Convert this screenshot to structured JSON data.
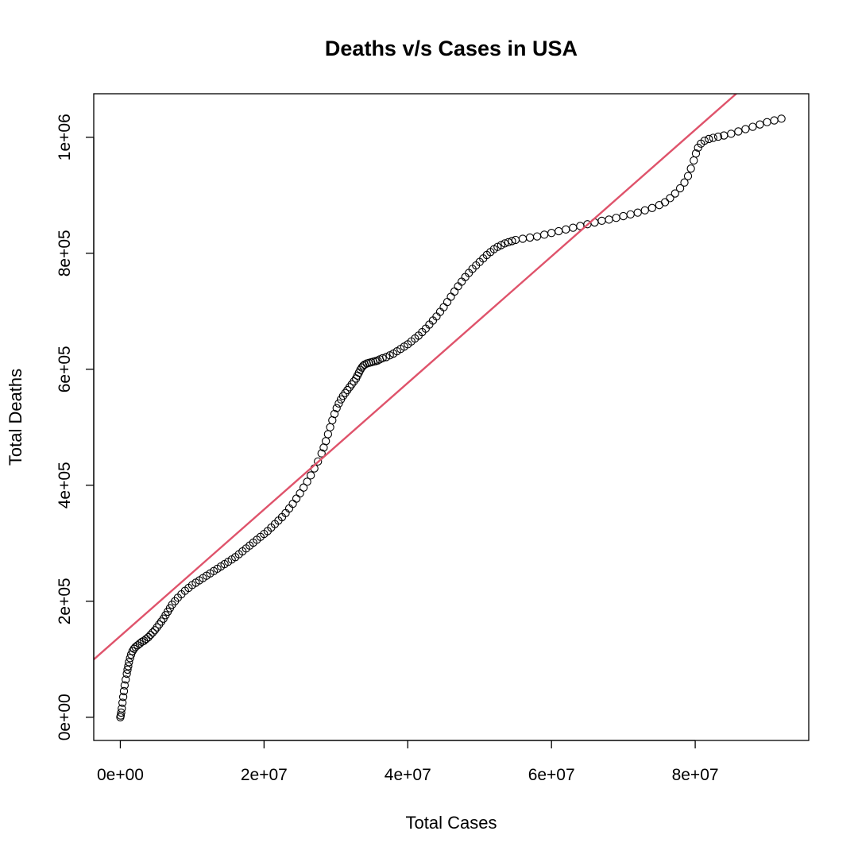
{
  "chart_data": {
    "type": "scatter",
    "title": "Deaths v/s Cases in USA",
    "xlabel": "Total Cases",
    "ylabel": "Total Deaths",
    "xlim": [
      -3700000,
      95800000
    ],
    "ylim": [
      -40000,
      1075000
    ],
    "x_ticks": [
      {
        "value": 0,
        "label": "0e+00"
      },
      {
        "value": 20000000,
        "label": "2e+07"
      },
      {
        "value": 40000000,
        "label": "4e+07"
      },
      {
        "value": 60000000,
        "label": "6e+07"
      },
      {
        "value": 80000000,
        "label": "8e+07"
      }
    ],
    "y_ticks": [
      {
        "value": 0,
        "label": "0e+00"
      },
      {
        "value": 200000,
        "label": "2e+05"
      },
      {
        "value": 400000,
        "label": "4e+05"
      },
      {
        "value": 600000,
        "label": "6e+05"
      },
      {
        "value": 800000,
        "label": "8e+05"
      },
      {
        "value": 1000000,
        "label": "1e+06"
      }
    ],
    "grid": false,
    "series": [
      {
        "marker": "open-circle",
        "color": "#000000",
        "points": [
          [
            0,
            0
          ],
          [
            50000,
            3000
          ],
          [
            120000,
            8000
          ],
          [
            200000,
            15000
          ],
          [
            300000,
            25000
          ],
          [
            400000,
            35000
          ],
          [
            500000,
            45000
          ],
          [
            600000,
            55000
          ],
          [
            750000,
            65000
          ],
          [
            900000,
            75000
          ],
          [
            1000000,
            82000
          ],
          [
            1100000,
            88000
          ],
          [
            1200000,
            95000
          ],
          [
            1350000,
            102000
          ],
          [
            1500000,
            108000
          ],
          [
            1700000,
            114000
          ],
          [
            1900000,
            118000
          ],
          [
            2100000,
            121000
          ],
          [
            2400000,
            124000
          ],
          [
            2700000,
            127000
          ],
          [
            3000000,
            130000
          ],
          [
            3300000,
            132000
          ],
          [
            3600000,
            135000
          ],
          [
            3900000,
            138000
          ],
          [
            4200000,
            142000
          ],
          [
            4500000,
            146000
          ],
          [
            4800000,
            150000
          ],
          [
            5100000,
            155000
          ],
          [
            5400000,
            160000
          ],
          [
            5700000,
            165000
          ],
          [
            6000000,
            170000
          ],
          [
            6300000,
            176000
          ],
          [
            6600000,
            182000
          ],
          [
            6900000,
            188000
          ],
          [
            7200000,
            194000
          ],
          [
            7600000,
            200000
          ],
          [
            8000000,
            206000
          ],
          [
            8500000,
            212000
          ],
          [
            9000000,
            218000
          ],
          [
            9500000,
            223000
          ],
          [
            10000000,
            228000
          ],
          [
            10500000,
            232000
          ],
          [
            11000000,
            236000
          ],
          [
            11500000,
            240000
          ],
          [
            12000000,
            244000
          ],
          [
            12500000,
            248000
          ],
          [
            13000000,
            252000
          ],
          [
            13500000,
            256000
          ],
          [
            14000000,
            260000
          ],
          [
            14500000,
            264000
          ],
          [
            15000000,
            268000
          ],
          [
            15500000,
            272000
          ],
          [
            16000000,
            276000
          ],
          [
            16500000,
            281000
          ],
          [
            17000000,
            286000
          ],
          [
            17500000,
            291000
          ],
          [
            18000000,
            296000
          ],
          [
            18500000,
            301000
          ],
          [
            19000000,
            306000
          ],
          [
            19500000,
            311000
          ],
          [
            20000000,
            316000
          ],
          [
            20500000,
            321000
          ],
          [
            21000000,
            327000
          ],
          [
            21500000,
            333000
          ],
          [
            22000000,
            339000
          ],
          [
            22500000,
            345000
          ],
          [
            23000000,
            352000
          ],
          [
            23500000,
            360000
          ],
          [
            24000000,
            368000
          ],
          [
            24500000,
            377000
          ],
          [
            25000000,
            386000
          ],
          [
            25500000,
            396000
          ],
          [
            26000000,
            406000
          ],
          [
            26500000,
            417000
          ],
          [
            27000000,
            429000
          ],
          [
            27500000,
            441000
          ],
          [
            28000000,
            455000
          ],
          [
            28300000,
            465000
          ],
          [
            28600000,
            476000
          ],
          [
            28900000,
            488000
          ],
          [
            29200000,
            500000
          ],
          [
            29500000,
            512000
          ],
          [
            29800000,
            523000
          ],
          [
            30100000,
            533000
          ],
          [
            30400000,
            541000
          ],
          [
            30700000,
            548000
          ],
          [
            31000000,
            554000
          ],
          [
            31300000,
            559000
          ],
          [
            31600000,
            564000
          ],
          [
            31900000,
            569000
          ],
          [
            32200000,
            574000
          ],
          [
            32500000,
            579000
          ],
          [
            32800000,
            584000
          ],
          [
            33000000,
            589000
          ],
          [
            33200000,
            594000
          ],
          [
            33400000,
            599000
          ],
          [
            33600000,
            603000
          ],
          [
            33800000,
            606000
          ],
          [
            34000000,
            608000
          ],
          [
            34300000,
            610000
          ],
          [
            34600000,
            611000
          ],
          [
            34900000,
            612000
          ],
          [
            35200000,
            613000
          ],
          [
            35500000,
            614000
          ],
          [
            35800000,
            615000
          ],
          [
            36100000,
            617000
          ],
          [
            36500000,
            619000
          ],
          [
            37000000,
            621000
          ],
          [
            37500000,
            624000
          ],
          [
            38000000,
            627000
          ],
          [
            38500000,
            631000
          ],
          [
            39000000,
            635000
          ],
          [
            39500000,
            639000
          ],
          [
            40000000,
            643000
          ],
          [
            40500000,
            648000
          ],
          [
            41000000,
            653000
          ],
          [
            41500000,
            658000
          ],
          [
            42000000,
            664000
          ],
          [
            42500000,
            670000
          ],
          [
            43000000,
            677000
          ],
          [
            43500000,
            684000
          ],
          [
            44000000,
            691000
          ],
          [
            44500000,
            699000
          ],
          [
            45000000,
            707000
          ],
          [
            45500000,
            716000
          ],
          [
            46000000,
            725000
          ],
          [
            46500000,
            734000
          ],
          [
            47000000,
            743000
          ],
          [
            47500000,
            751000
          ],
          [
            48000000,
            759000
          ],
          [
            48500000,
            766000
          ],
          [
            49000000,
            773000
          ],
          [
            49500000,
            779000
          ],
          [
            50000000,
            785000
          ],
          [
            50500000,
            791000
          ],
          [
            51000000,
            797000
          ],
          [
            51500000,
            802000
          ],
          [
            52000000,
            807000
          ],
          [
            52500000,
            811000
          ],
          [
            53000000,
            814000
          ],
          [
            53500000,
            817000
          ],
          [
            54000000,
            819000
          ],
          [
            54500000,
            821000
          ],
          [
            55000000,
            823000
          ],
          [
            56000000,
            825000
          ],
          [
            57000000,
            827000
          ],
          [
            58000000,
            829000
          ],
          [
            59000000,
            832000
          ],
          [
            60000000,
            835000
          ],
          [
            61000000,
            838000
          ],
          [
            62000000,
            841000
          ],
          [
            63000000,
            844000
          ],
          [
            64000000,
            847000
          ],
          [
            65000000,
            850000
          ],
          [
            66000000,
            853000
          ],
          [
            67000000,
            856000
          ],
          [
            68000000,
            858000
          ],
          [
            69000000,
            861000
          ],
          [
            70000000,
            864000
          ],
          [
            71000000,
            867000
          ],
          [
            72000000,
            870000
          ],
          [
            73000000,
            874000
          ],
          [
            74000000,
            878000
          ],
          [
            75000000,
            883000
          ],
          [
            75800000,
            888000
          ],
          [
            76500000,
            895000
          ],
          [
            77200000,
            903000
          ],
          [
            77900000,
            912000
          ],
          [
            78500000,
            922000
          ],
          [
            79000000,
            933000
          ],
          [
            79400000,
            946000
          ],
          [
            79800000,
            960000
          ],
          [
            80100000,
            972000
          ],
          [
            80400000,
            982000
          ],
          [
            80800000,
            989000
          ],
          [
            81300000,
            994000
          ],
          [
            81900000,
            997000
          ],
          [
            82500000,
            999000
          ],
          [
            83200000,
            1001000
          ],
          [
            84000000,
            1003000
          ],
          [
            85000000,
            1006000
          ],
          [
            86000000,
            1010000
          ],
          [
            87000000,
            1014000
          ],
          [
            88000000,
            1018000
          ],
          [
            89000000,
            1022000
          ],
          [
            90000000,
            1026000
          ],
          [
            91000000,
            1029000
          ],
          [
            92000000,
            1032000
          ]
        ]
      }
    ],
    "regression_line": {
      "color": "#DF536B",
      "intercept": 140000,
      "slope": 0.01091
    }
  }
}
